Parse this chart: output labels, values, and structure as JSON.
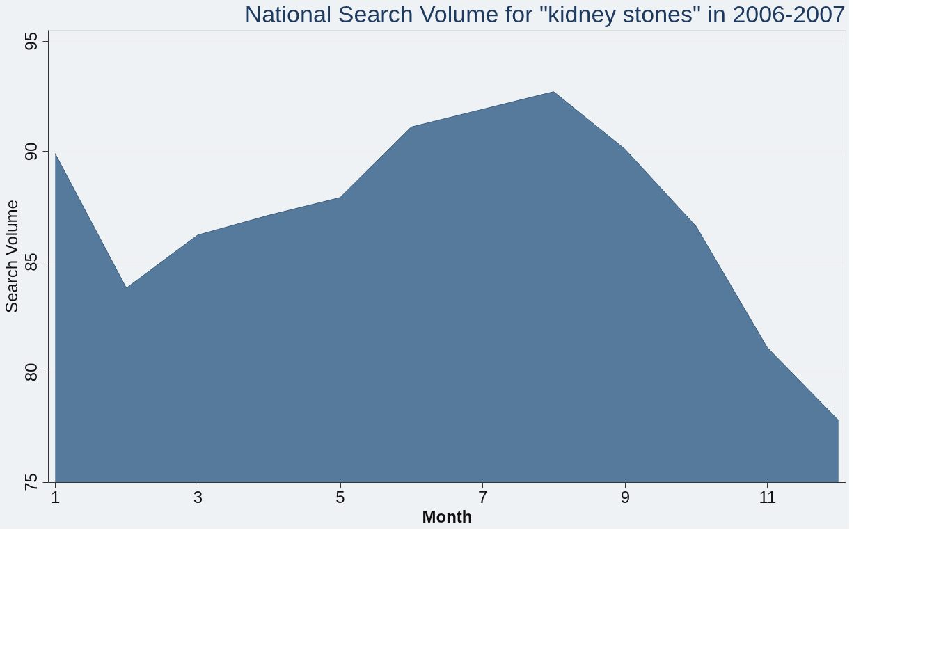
{
  "chart_data": {
    "type": "area",
    "title": "National Search Volume for \"kidney stones\" in 2006-2007",
    "xlabel": "Month",
    "ylabel": "Search Volume",
    "x": [
      1,
      2,
      3,
      4,
      5,
      6,
      7,
      8,
      9,
      10,
      11,
      12
    ],
    "series": [
      {
        "color": "#557a9c",
        "values": [
          89.9,
          83.8,
          86.2,
          87.1,
          87.9,
          91.1,
          91.9,
          92.7,
          90.1,
          86.6,
          81.1,
          77.8
        ]
      }
    ],
    "xlim": [
      0.9,
      12.1
    ],
    "xticks": [
      1,
      3,
      5,
      7,
      9,
      11
    ],
    "ylim": [
      75,
      95.5
    ],
    "yticks": [
      75,
      80,
      85,
      90,
      95
    ],
    "grid": "y"
  }
}
